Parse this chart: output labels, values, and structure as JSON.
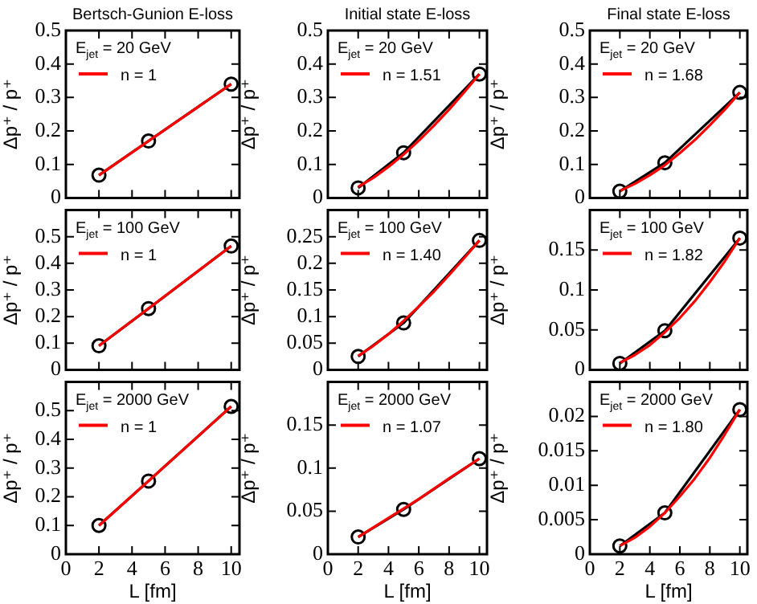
{
  "chart_data": [
    {
      "type": "line",
      "title": "Bertsch-Gunion E-loss",
      "ylabel": "Δp⁺ / p⁺",
      "annotations": [
        "E$_{jet}$ = 20 GeV"
      ],
      "xlim": [
        0,
        10.5
      ],
      "xticks": [
        0,
        2,
        4,
        6,
        8,
        10
      ],
      "ylim": [
        0,
        0.5
      ],
      "yticks": [
        0,
        0.1,
        0.2,
        0.3,
        0.4,
        0.5
      ],
      "tick_labels": "y",
      "legend": "top left",
      "series": [
        {
          "color": "#000000",
          "marker": "circle",
          "x": [
            2,
            5,
            10
          ],
          "values": [
            0.068,
            0.17,
            0.34
          ]
        },
        {
          "name": "n = 1",
          "color": "#ff0000",
          "marker": "none",
          "x": [
            2,
            10
          ],
          "values": [
            0.068,
            0.34
          ]
        }
      ]
    },
    {
      "type": "line",
      "title": "Initial state E-loss",
      "ylabel": "Δp⁺ / p⁺",
      "annotations": [
        "E$_{jet}$ = 20 GeV"
      ],
      "xlim": [
        0,
        10.5
      ],
      "xticks": [
        0,
        2,
        4,
        6,
        8,
        10
      ],
      "ylim": [
        0,
        0.5
      ],
      "yticks": [
        0,
        0.1,
        0.2,
        0.3,
        0.4,
        0.5
      ],
      "tick_labels": "y",
      "legend": "top left",
      "series": [
        {
          "color": "#000000",
          "marker": "circle",
          "x": [
            2,
            5,
            10
          ],
          "values": [
            0.03,
            0.135,
            0.37
          ]
        },
        {
          "name": "n = 1.51",
          "color": "#ff0000",
          "marker": "none",
          "x": [
            2,
            3,
            4,
            5,
            6,
            7,
            8,
            9,
            10
          ],
          "values": [
            0.033,
            0.06,
            0.093,
            0.13,
            0.171,
            0.216,
            0.264,
            0.316,
            0.37
          ]
        }
      ]
    },
    {
      "type": "line",
      "title": "Final state E-loss",
      "ylabel": "Δp⁺ / p⁺",
      "annotations": [
        "E$_{jet}$ = 20 GeV"
      ],
      "xlim": [
        0,
        10.5
      ],
      "xticks": [
        0,
        2,
        4,
        6,
        8,
        10
      ],
      "ylim": [
        0,
        0.5
      ],
      "yticks": [
        0,
        0.1,
        0.2,
        0.3,
        0.4,
        0.5
      ],
      "tick_labels": "y",
      "legend": "top left",
      "series": [
        {
          "color": "#000000",
          "marker": "circle",
          "x": [
            2,
            5,
            10
          ],
          "values": [
            0.02,
            0.105,
            0.315
          ]
        },
        {
          "name": "n = 1.68",
          "color": "#ff0000",
          "marker": "none",
          "x": [
            2,
            3,
            4,
            5,
            6,
            7,
            8,
            9,
            10
          ],
          "values": [
            0.021,
            0.042,
            0.068,
            0.098,
            0.134,
            0.173,
            0.217,
            0.264,
            0.315
          ]
        }
      ]
    },
    {
      "type": "line",
      "ylabel": "Δp⁺ / p⁺",
      "annotations": [
        "E$_{jet}$ = 100 GeV"
      ],
      "xlim": [
        0,
        10.5
      ],
      "xticks": [
        0,
        2,
        4,
        6,
        8,
        10
      ],
      "ylim": [
        0,
        0.6
      ],
      "yticks": [
        0,
        0.1,
        0.2,
        0.3,
        0.4,
        0.5,
        {
          "value": 0.6,
          "label": null
        }
      ],
      "tick_labels": "y",
      "legend": "top left",
      "series": [
        {
          "color": "#000000",
          "marker": "circle",
          "x": [
            2,
            5,
            10
          ],
          "values": [
            0.09,
            0.23,
            0.465
          ]
        },
        {
          "name": "n = 1",
          "color": "#ff0000",
          "marker": "none",
          "x": [
            2,
            10
          ],
          "values": [
            0.09,
            0.465
          ]
        }
      ]
    },
    {
      "type": "line",
      "ylabel": "Δp⁺ / p⁺",
      "annotations": [
        "E$_{jet}$ = 100 GeV"
      ],
      "xlim": [
        0,
        10.5
      ],
      "xticks": [
        0,
        2,
        4,
        6,
        8,
        10
      ],
      "ylim": [
        0,
        0.3
      ],
      "yticks": [
        0,
        0.05,
        0.1,
        0.15,
        0.2,
        0.25,
        {
          "value": 0.3,
          "label": null
        }
      ],
      "tick_labels": "y",
      "legend": "top left",
      "series": [
        {
          "color": "#000000",
          "marker": "circle",
          "x": [
            2,
            5,
            10
          ],
          "values": [
            0.025,
            0.088,
            0.243
          ]
        },
        {
          "name": "n = 1.40",
          "color": "#ff0000",
          "marker": "none",
          "x": [
            2,
            3,
            4,
            5,
            6,
            7,
            8,
            9,
            10
          ],
          "values": [
            0.026,
            0.045,
            0.067,
            0.092,
            0.119,
            0.147,
            0.178,
            0.21,
            0.243
          ]
        }
      ]
    },
    {
      "type": "line",
      "ylabel": "Δp⁺ / p⁺",
      "annotations": [
        "E$_{jet}$ = 100 GeV"
      ],
      "xlim": [
        0,
        10.5
      ],
      "xticks": [
        0,
        2,
        4,
        6,
        8,
        10
      ],
      "ylim": [
        0,
        0.2
      ],
      "yticks": [
        0,
        0.05,
        0.1,
        0.15,
        {
          "value": 0.2,
          "label": null
        }
      ],
      "tick_labels": "y",
      "legend": "top left",
      "series": [
        {
          "color": "#000000",
          "marker": "circle",
          "x": [
            2,
            5,
            10
          ],
          "values": [
            0.008,
            0.049,
            0.165
          ]
        },
        {
          "name": "n = 1.82",
          "color": "#ff0000",
          "marker": "none",
          "x": [
            2,
            3,
            4,
            5,
            6,
            7,
            8,
            9,
            10
          ],
          "values": [
            0.0088,
            0.0185,
            0.031,
            0.047,
            0.065,
            0.086,
            0.11,
            0.136,
            0.165
          ]
        }
      ]
    },
    {
      "type": "line",
      "xlabel": "L [fm]",
      "ylabel": "Δp⁺ / p⁺",
      "annotations": [
        "E$_{jet}$ = 2000 GeV"
      ],
      "xlim": [
        0,
        10.5
      ],
      "xticks": [
        0,
        2,
        4,
        6,
        8,
        10
      ],
      "ylim": [
        0,
        0.6
      ],
      "yticks": [
        0,
        0.1,
        0.2,
        0.3,
        0.4,
        0.5,
        {
          "value": 0.6,
          "label": null
        }
      ],
      "legend": "top left",
      "series": [
        {
          "color": "#000000",
          "marker": "circle",
          "x": [
            2,
            5,
            10
          ],
          "values": [
            0.1,
            0.255,
            0.515
          ]
        },
        {
          "name": "n = 1",
          "color": "#ff0000",
          "marker": "none",
          "x": [
            2,
            10
          ],
          "values": [
            0.1,
            0.515
          ]
        }
      ]
    },
    {
      "type": "line",
      "xlabel": "L [fm]",
      "ylabel": "Δp⁺ / p⁺",
      "annotations": [
        "E$_{jet}$ = 2000 GeV"
      ],
      "xlim": [
        0,
        10.5
      ],
      "xticks": [
        0,
        2,
        4,
        6,
        8,
        10
      ],
      "ylim": [
        0,
        0.2
      ],
      "yticks": [
        0,
        0.05,
        0.1,
        0.15,
        {
          "value": 0.2,
          "label": null
        }
      ],
      "legend": "top left",
      "series": [
        {
          "color": "#000000",
          "marker": "circle",
          "x": [
            2,
            5,
            10
          ],
          "values": [
            0.02,
            0.052,
            0.111
          ]
        },
        {
          "name": "n = 1.07",
          "color": "#ff0000",
          "marker": "none",
          "x": [
            2,
            4,
            6,
            8,
            10
          ],
          "values": [
            0.02,
            0.042,
            0.064,
            0.088,
            0.111
          ]
        }
      ]
    },
    {
      "type": "line",
      "xlabel": "L [fm]",
      "ylabel": "Δp⁺ / p⁺",
      "annotations": [
        "E$_{jet}$ = 2000 GeV"
      ],
      "xlim": [
        0,
        10.5
      ],
      "xticks": [
        0,
        2,
        4,
        6,
        8,
        10
      ],
      "ylim": [
        0,
        0.025
      ],
      "yticks": [
        0,
        0.005,
        0.01,
        0.015,
        0.02,
        {
          "value": 0.025,
          "label": null
        }
      ],
      "legend": "top left",
      "series": [
        {
          "color": "#000000",
          "marker": "circle",
          "x": [
            2,
            5,
            10
          ],
          "values": [
            0.0012,
            0.006,
            0.021
          ]
        },
        {
          "name": "n = 1.80",
          "color": "#ff0000",
          "marker": "none",
          "x": [
            2,
            3,
            4,
            5,
            6,
            7,
            8,
            9,
            10
          ],
          "values": [
            0.0012,
            0.0024,
            0.004,
            0.006,
            0.0084,
            0.011,
            0.014,
            0.0174,
            0.021
          ]
        }
      ]
    }
  ]
}
